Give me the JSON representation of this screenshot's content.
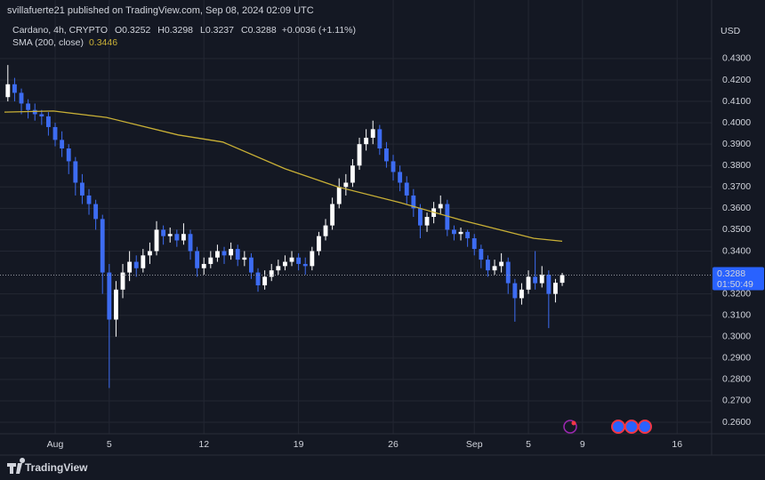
{
  "header": {
    "publisher": "svillafuerte21 published on TradingView.com, Sep 08, 2024 02:09 UTC"
  },
  "chart_data": {
    "type": "candlestick",
    "symbol": "Cardano, 4h, CRYPTO",
    "ohlc_legend": [
      {
        "label": "O",
        "value": 0.3252
      },
      {
        "label": "H",
        "value": 0.3298
      },
      {
        "label": "L",
        "value": 0.3237
      },
      {
        "label": "C",
        "value": 0.3288
      }
    ],
    "change": "+0.0036 (+1.11%)",
    "currency": "USD",
    "countdown": "01:50:49",
    "x": [
      -3.5,
      -3,
      -2.5,
      -2,
      -1.5,
      -1,
      -0.5,
      0,
      0.5,
      1,
      1.5,
      2,
      2.5,
      3,
      3.5,
      4,
      4.5,
      5,
      5.5,
      6,
      6.5,
      7,
      7.5,
      8,
      8.5,
      9,
      9.5,
      10,
      10.5,
      11,
      11.5,
      12,
      12.5,
      13,
      13.5,
      14,
      14.5,
      15,
      15.5,
      16,
      16.5,
      17,
      17.5,
      18,
      18.5,
      19,
      19.5,
      20,
      20.5,
      21,
      21.5,
      22,
      22.5,
      23,
      23.5,
      24,
      24.5,
      25,
      25.5,
      26,
      26.5,
      27,
      27.5,
      28,
      28.5,
      29,
      29.5,
      30,
      30.5,
      31,
      31.5,
      32,
      32.5,
      33,
      33.5,
      34,
      34.5,
      35,
      35.5,
      36,
      36.5,
      37,
      37.5
    ],
    "open": [
      0.412,
      0.418,
      0.414,
      0.409,
      0.406,
      0.404,
      0.403,
      0.398,
      0.392,
      0.388,
      0.382,
      0.372,
      0.366,
      0.362,
      0.355,
      0.33,
      0.308,
      0.322,
      0.33,
      0.335,
      0.332,
      0.338,
      0.34,
      0.35,
      0.347,
      0.348,
      0.345,
      0.348,
      0.34,
      0.332,
      0.334,
      0.337,
      0.34,
      0.338,
      0.341,
      0.336,
      0.337,
      0.33,
      0.324,
      0.328,
      0.331,
      0.333,
      0.335,
      0.337,
      0.334,
      0.333,
      0.34,
      0.347,
      0.352,
      0.362,
      0.37,
      0.372,
      0.38,
      0.39,
      0.393,
      0.397,
      0.388,
      0.382,
      0.377,
      0.372,
      0.366,
      0.36,
      0.352,
      0.356,
      0.36,
      0.362,
      0.35,
      0.348,
      0.349,
      0.346,
      0.341,
      0.336,
      0.331,
      0.333,
      0.335,
      0.325,
      0.318,
      0.322,
      0.328,
      0.325,
      0.329,
      0.32,
      0.3252
    ],
    "high": [
      0.427,
      0.421,
      0.416,
      0.411,
      0.409,
      0.406,
      0.405,
      0.4,
      0.396,
      0.39,
      0.384,
      0.376,
      0.369,
      0.364,
      0.357,
      0.334,
      0.326,
      0.334,
      0.34,
      0.338,
      0.341,
      0.344,
      0.354,
      0.352,
      0.351,
      0.35,
      0.353,
      0.35,
      0.342,
      0.337,
      0.34,
      0.343,
      0.342,
      0.344,
      0.343,
      0.34,
      0.339,
      0.332,
      0.331,
      0.334,
      0.336,
      0.338,
      0.34,
      0.339,
      0.337,
      0.342,
      0.349,
      0.355,
      0.365,
      0.374,
      0.376,
      0.383,
      0.393,
      0.397,
      0.401,
      0.399,
      0.391,
      0.385,
      0.38,
      0.375,
      0.369,
      0.362,
      0.358,
      0.363,
      0.366,
      0.364,
      0.352,
      0.351,
      0.35,
      0.348,
      0.343,
      0.338,
      0.336,
      0.339,
      0.337,
      0.327,
      0.325,
      0.331,
      0.34,
      0.333,
      0.331,
      0.327,
      0.3298
    ],
    "low": [
      0.41,
      0.41,
      0.404,
      0.402,
      0.401,
      0.399,
      0.394,
      0.389,
      0.384,
      0.376,
      0.366,
      0.362,
      0.357,
      0.35,
      0.32,
      0.276,
      0.3,
      0.318,
      0.326,
      0.328,
      0.33,
      0.334,
      0.338,
      0.343,
      0.344,
      0.342,
      0.343,
      0.336,
      0.328,
      0.329,
      0.332,
      0.335,
      0.334,
      0.336,
      0.333,
      0.333,
      0.327,
      0.321,
      0.322,
      0.326,
      0.329,
      0.331,
      0.333,
      0.331,
      0.329,
      0.331,
      0.338,
      0.345,
      0.35,
      0.36,
      0.366,
      0.37,
      0.378,
      0.387,
      0.39,
      0.385,
      0.379,
      0.373,
      0.368,
      0.362,
      0.356,
      0.346,
      0.349,
      0.353,
      0.357,
      0.347,
      0.345,
      0.345,
      0.342,
      0.338,
      0.332,
      0.328,
      0.329,
      0.33,
      0.32,
      0.307,
      0.315,
      0.32,
      0.322,
      0.323,
      0.304,
      0.316,
      0.3237
    ],
    "close": [
      0.418,
      0.414,
      0.409,
      0.406,
      0.404,
      0.403,
      0.398,
      0.392,
      0.388,
      0.382,
      0.372,
      0.366,
      0.362,
      0.355,
      0.33,
      0.308,
      0.322,
      0.33,
      0.335,
      0.332,
      0.338,
      0.34,
      0.35,
      0.347,
      0.348,
      0.345,
      0.348,
      0.34,
      0.332,
      0.334,
      0.337,
      0.34,
      0.338,
      0.341,
      0.336,
      0.337,
      0.33,
      0.324,
      0.328,
      0.331,
      0.333,
      0.335,
      0.337,
      0.334,
      0.333,
      0.34,
      0.347,
      0.352,
      0.362,
      0.37,
      0.372,
      0.38,
      0.39,
      0.393,
      0.397,
      0.388,
      0.382,
      0.377,
      0.372,
      0.366,
      0.36,
      0.352,
      0.356,
      0.36,
      0.362,
      0.35,
      0.348,
      0.349,
      0.346,
      0.341,
      0.336,
      0.331,
      0.333,
      0.335,
      0.325,
      0.318,
      0.322,
      0.328,
      0.325,
      0.329,
      0.32,
      0.3252,
      0.3288
    ],
    "up_color": "#ffffff",
    "down_color": "#3d6cf2",
    "last_price_color": "#2962ff",
    "series": [
      {
        "name": "SMA (200, close)",
        "color": "#c9b036",
        "x": [
          -3.75,
          -0.13,
          3.8,
          9.1,
          12.4,
          17,
          20.9,
          25.5,
          30.1,
          35.4,
          37.5
        ],
        "values": [
          0.405,
          0.4055,
          0.4025,
          0.3943,
          0.391,
          0.3785,
          0.37,
          0.3627,
          0.3544,
          0.346,
          0.3446
        ]
      }
    ],
    "xlim": [
      -4.08,
      48.55
    ],
    "xticks": [
      {
        "value": 0,
        "label": "Aug"
      },
      {
        "value": 4,
        "label": "5"
      },
      {
        "value": 11,
        "label": "12"
      },
      {
        "value": 18,
        "label": "19"
      },
      {
        "value": 25,
        "label": "26"
      },
      {
        "value": 31,
        "label": "Sep"
      },
      {
        "value": 35,
        "label": "5"
      },
      {
        "value": 39,
        "label": "9"
      },
      {
        "value": 46,
        "label": "16"
      }
    ],
    "ylim": [
      0.2546,
      0.4574
    ],
    "yticks": [
      {
        "value": 0.43,
        "label": "0.4300"
      },
      {
        "value": 0.42,
        "label": "0.4200"
      },
      {
        "value": 0.41,
        "label": "0.4100"
      },
      {
        "value": 0.4,
        "label": "0.4000"
      },
      {
        "value": 0.39,
        "label": "0.3900"
      },
      {
        "value": 0.38,
        "label": "0.3800"
      },
      {
        "value": 0.37,
        "label": "0.3700"
      },
      {
        "value": 0.36,
        "label": "0.3600"
      },
      {
        "value": 0.35,
        "label": "0.3500"
      },
      {
        "value": 0.34,
        "label": "0.3400"
      },
      {
        "value": 0.32,
        "label": "0.3200"
      },
      {
        "value": 0.31,
        "label": "0.3100"
      },
      {
        "value": 0.3,
        "label": "0.3000"
      },
      {
        "value": 0.29,
        "label": "0.2900"
      },
      {
        "value": 0.28,
        "label": "0.2800"
      },
      {
        "value": 0.27,
        "label": "0.2700"
      },
      {
        "value": 0.26,
        "label": "0.2600"
      }
    ],
    "grid": true
  },
  "footer": {
    "brand": "TradingView"
  }
}
